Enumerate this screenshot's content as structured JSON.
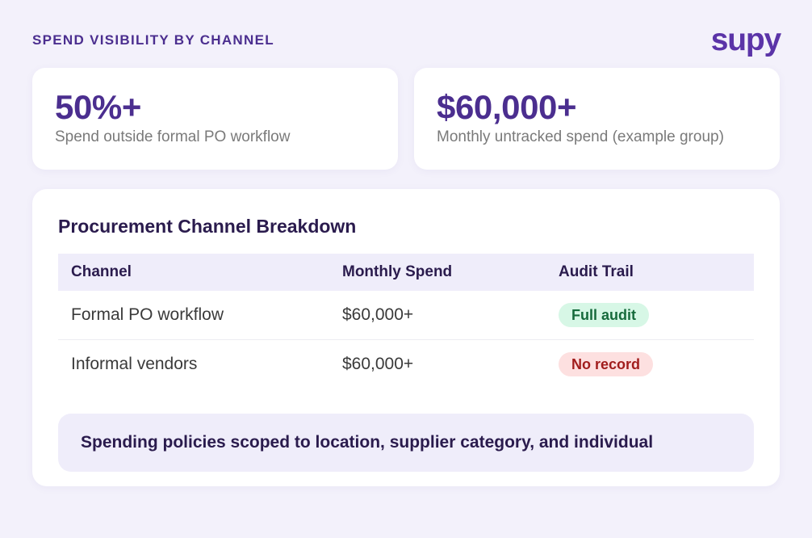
{
  "header": {
    "title": "SPEND VISIBILITY BY CHANNEL",
    "logo_text": "supy"
  },
  "stats": [
    {
      "value": "50%+",
      "label": "Spend outside formal PO workflow"
    },
    {
      "value": "$60,000+",
      "label": "Monthly untracked spend (example group)"
    }
  ],
  "breakdown": {
    "title": "Procurement Channel Breakdown",
    "columns": [
      "Channel",
      "Monthly Spend",
      "Audit Trail"
    ],
    "rows": [
      {
        "channel": "Formal PO workflow",
        "spend": "$60,000+",
        "audit": "Full audit",
        "audit_status": "positive"
      },
      {
        "channel": "Informal vendors",
        "spend": "$60,000+",
        "audit": "No record",
        "audit_status": "negative"
      }
    ],
    "note": "Spending policies scoped to location, supplier category, and individual"
  },
  "colors": {
    "background": "#f3f1fb",
    "brand": "#5b34a8",
    "heading": "#4b2e8f",
    "badge_positive_bg": "#d7f7e6",
    "badge_positive_text": "#166a3c",
    "badge_negative_bg": "#fde0e0",
    "badge_negative_text": "#a11d1d"
  }
}
